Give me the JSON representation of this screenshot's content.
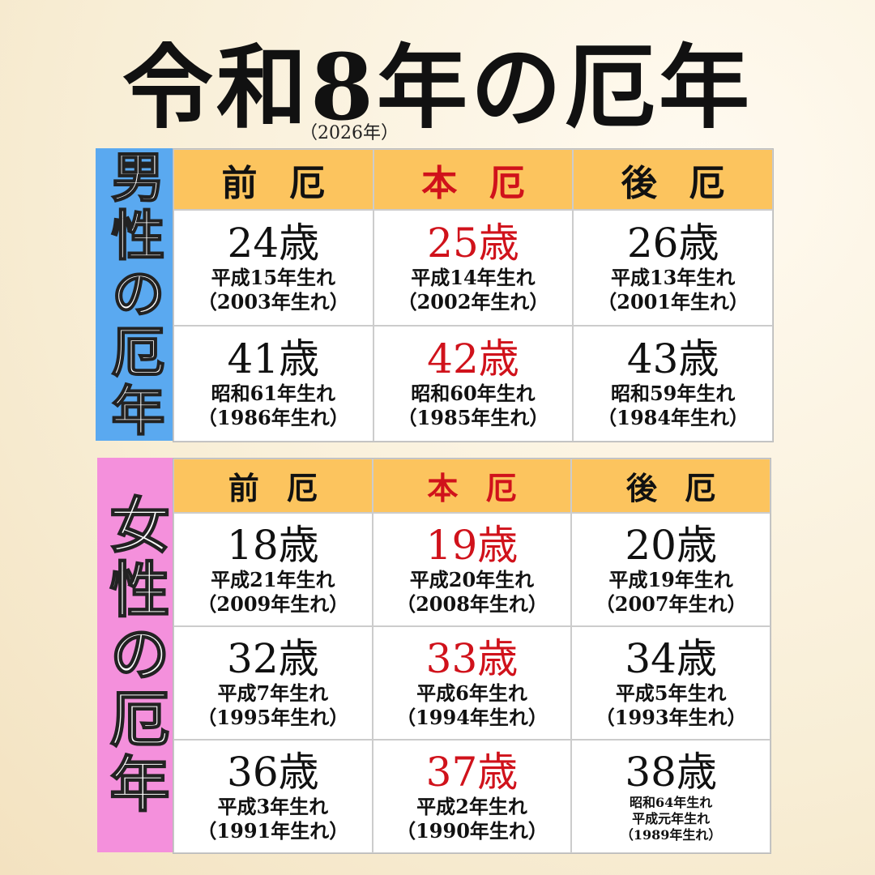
{
  "title": "令和8年の厄年",
  "subtitle": "（2026年）",
  "tables": [
    {
      "label": "男性の厄年",
      "headers": [
        "前厄",
        "本厄",
        "後厄"
      ],
      "rows": [
        [
          {
            "age": "24歳",
            "lines": [
              "平成15年生れ",
              "（2003年生れ）"
            ]
          },
          {
            "age": "25歳",
            "lines": [
              "平成14年生れ",
              "（2002年生れ）"
            ]
          },
          {
            "age": "26歳",
            "lines": [
              "平成13年生れ",
              "（2001年生れ）"
            ]
          }
        ],
        [
          {
            "age": "41歳",
            "lines": [
              "昭和61年生れ",
              "（1986年生れ）"
            ]
          },
          {
            "age": "42歳",
            "lines": [
              "昭和60年生れ",
              "（1985年生れ）"
            ]
          },
          {
            "age": "43歳",
            "lines": [
              "昭和59年生れ",
              "（1984年生れ）"
            ]
          }
        ]
      ]
    },
    {
      "label": "女性の厄年",
      "headers": [
        "前厄",
        "本厄",
        "後厄"
      ],
      "rows": [
        [
          {
            "age": "18歳",
            "lines": [
              "平成21年生れ",
              "（2009年生れ）"
            ]
          },
          {
            "age": "19歳",
            "lines": [
              "平成20年生れ",
              "（2008年生れ）"
            ]
          },
          {
            "age": "20歳",
            "lines": [
              "平成19年生れ",
              "（2007年生れ）"
            ]
          }
        ],
        [
          {
            "age": "32歳",
            "lines": [
              "平成7年生れ",
              "（1995年生れ）"
            ]
          },
          {
            "age": "33歳",
            "lines": [
              "平成6年生れ",
              "（1994年生れ）"
            ]
          },
          {
            "age": "34歳",
            "lines": [
              "平成5年生れ",
              "（1993年生れ）"
            ]
          }
        ],
        [
          {
            "age": "36歳",
            "lines": [
              "平成3年生れ",
              "（1991年生れ）"
            ]
          },
          {
            "age": "37歳",
            "lines": [
              "平成2年生れ",
              "（1990年生れ）"
            ]
          },
          {
            "age": "38歳",
            "lines": [
              "昭和64年生れ",
              "平成元年生れ",
              "（1989年生れ）"
            ]
          }
        ]
      ]
    }
  ]
}
